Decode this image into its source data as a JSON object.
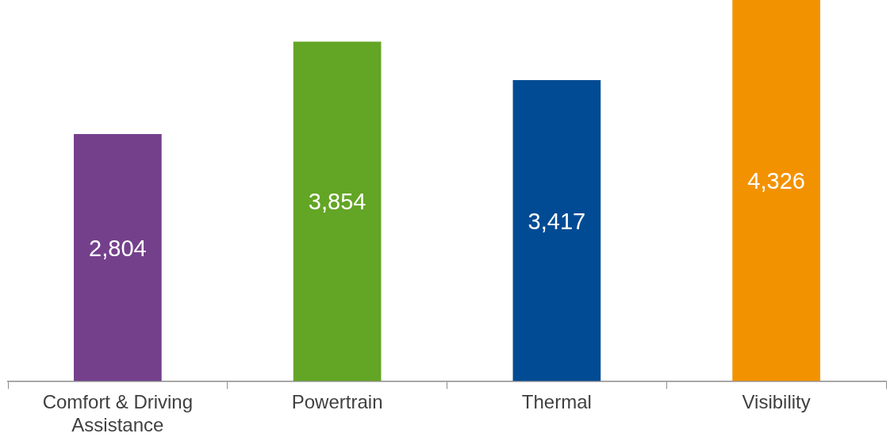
{
  "chart_data": {
    "type": "bar",
    "categories": [
      "Comfort & Driving Assistance",
      "Powertrain",
      "Thermal",
      "Visibility"
    ],
    "values": [
      2804,
      3854,
      3417,
      4326
    ],
    "value_labels": [
      "2,804",
      "3,854",
      "3,417",
      "4,326"
    ],
    "colors": [
      "#74408c",
      "#63a524",
      "#004b93",
      "#f39200"
    ],
    "grid": false,
    "legend": false
  }
}
